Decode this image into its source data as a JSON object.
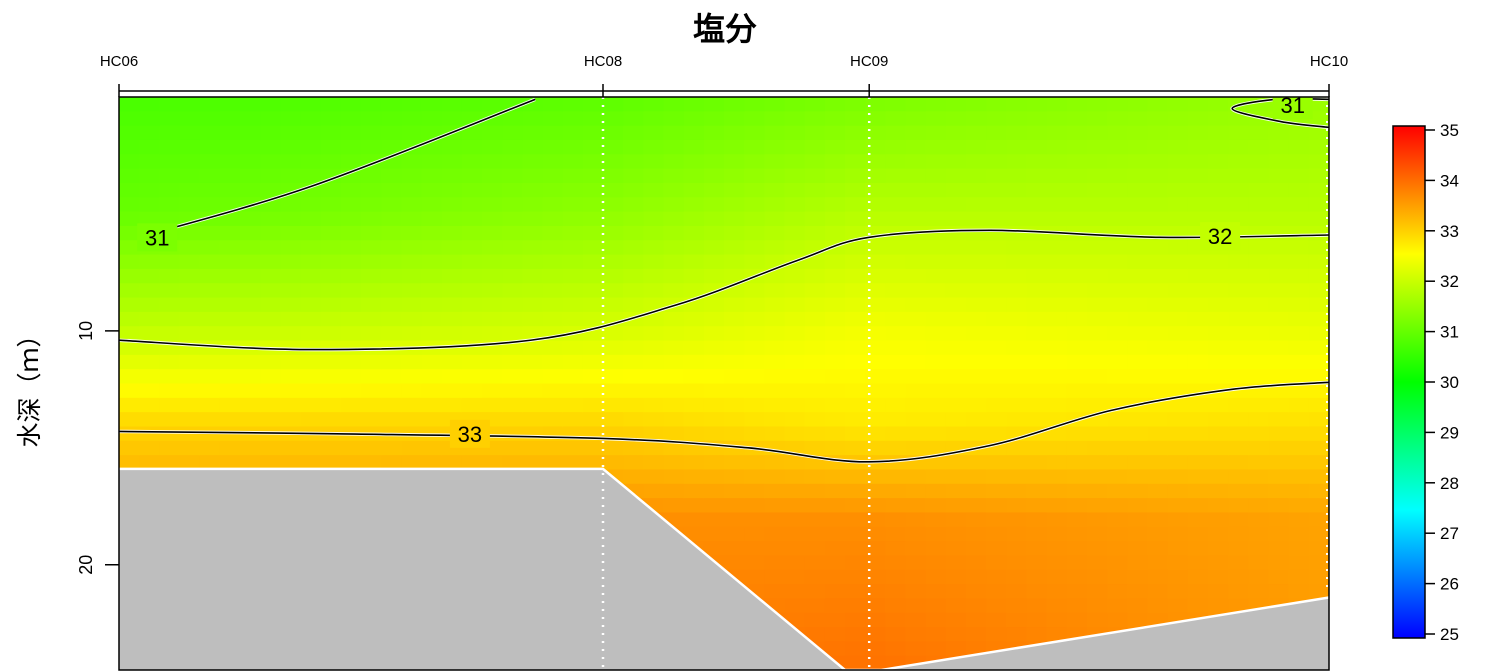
{
  "chart_data": {
    "type": "heatmap",
    "title": "塩分",
    "ylabel": "水深（ｍ）",
    "xlabel": "",
    "stations": [
      "HC06",
      "HC08",
      "HC09",
      "HC10"
    ],
    "station_distance": [
      0,
      2.0,
      3.1,
      5.0
    ],
    "ylim": [
      0,
      24.5
    ],
    "yticks": [
      10,
      20
    ],
    "color_scale": {
      "min": 25,
      "max": 35,
      "ticks": [
        25,
        26,
        27,
        28,
        29,
        30,
        31,
        32,
        33,
        34,
        35
      ],
      "colors": [
        "#0000ff",
        "#0080ff",
        "#00ffff",
        "#00ff80",
        "#00ff00",
        "#80ff00",
        "#ffff00",
        "#ff8000",
        "#ff0000"
      ]
    },
    "contours": [
      {
        "level": "31",
        "points": [
          [
            0.08,
            6.0
          ],
          [
            0.8,
            3.8
          ],
          [
            1.72,
            0.1
          ]
        ]
      },
      {
        "level": "31",
        "points": [
          [
            5.0,
            1.3
          ],
          [
            4.8,
            1.05
          ],
          [
            4.6,
            0.5
          ],
          [
            4.78,
            0.1
          ],
          [
            5.0,
            0.1
          ]
        ]
      },
      {
        "level": "32",
        "points": [
          [
            0,
            10.4
          ],
          [
            0.8,
            10.8
          ],
          [
            1.7,
            10.4
          ],
          [
            2.3,
            8.9
          ],
          [
            2.8,
            7.0
          ],
          [
            3.1,
            6.0
          ],
          [
            3.6,
            5.7
          ],
          [
            4.3,
            6.0
          ],
          [
            5.0,
            5.9
          ]
        ]
      },
      {
        "level": "33",
        "points": [
          [
            0,
            14.3
          ],
          [
            0.9,
            14.4
          ],
          [
            2.0,
            14.6
          ],
          [
            2.6,
            15.0
          ],
          [
            3.1,
            15.6
          ],
          [
            3.6,
            14.9
          ],
          [
            4.1,
            13.4
          ],
          [
            4.6,
            12.5
          ],
          [
            5.0,
            12.2
          ]
        ]
      }
    ],
    "bottom_depth": [
      [
        0,
        15.9
      ],
      [
        1.75,
        15.9
      ],
      [
        2.0,
        15.9
      ],
      [
        3.0,
        24.5
      ],
      [
        3.15,
        24.5
      ],
      [
        5.0,
        21.4
      ]
    ],
    "salinity_grid": {
      "depths": [
        0,
        5,
        10,
        14,
        18,
        24.5
      ],
      "values": [
        [
          30.7,
          30.9,
          31.2,
          31.5
        ],
        [
          31.0,
          31.4,
          31.8,
          31.8
        ],
        [
          31.9,
          32.1,
          32.4,
          32.3
        ],
        [
          32.9,
          32.9,
          32.7,
          32.8
        ],
        [
          33.5,
          33.6,
          33.6,
          33.4
        ],
        [
          33.6,
          33.8,
          33.9,
          33.5
        ]
      ]
    }
  }
}
